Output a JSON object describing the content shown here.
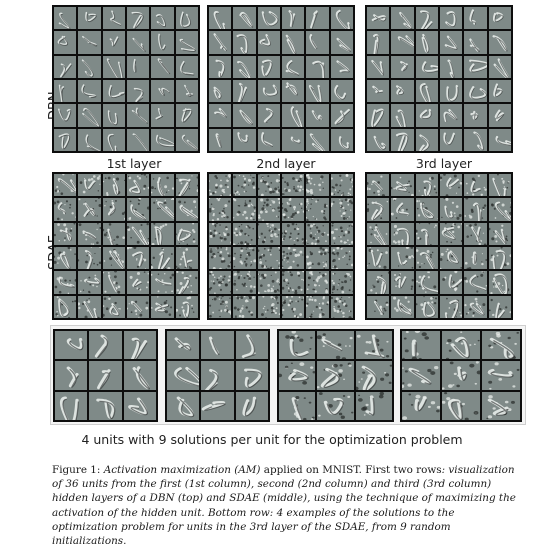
{
  "row_labels": {
    "dbn": "DBN",
    "sdae": "SDAE"
  },
  "column_labels": [
    "1st layer",
    "2nd layer",
    "3rd layer"
  ],
  "panel_colors": {
    "tile_bg": "#7f8a88",
    "grid_line": "#0d0d0d",
    "stroke_light": "#e8ecea",
    "stroke_dark": "#2b2f2e"
  },
  "bottom_caption": "4 units with 9 solutions per unit for the optimization problem",
  "figure_caption": {
    "label": "Figure 1:",
    "part1": "Activation maximization (AM)",
    "part2": " applied on MNIST. First two rows",
    "part3": ": visualization of 36 units from the first (1st column), second (2nd column) and third (3rd column) hidden layers of a DBN (top) and SDAE (middle), using the technique of maximizing the activation of the hidden unit. Bottom row: ",
    "part4": "4 examples of the solutions to the optimization problem for units in the 3rd layer of the SDAE, from 9 random initializations."
  }
}
